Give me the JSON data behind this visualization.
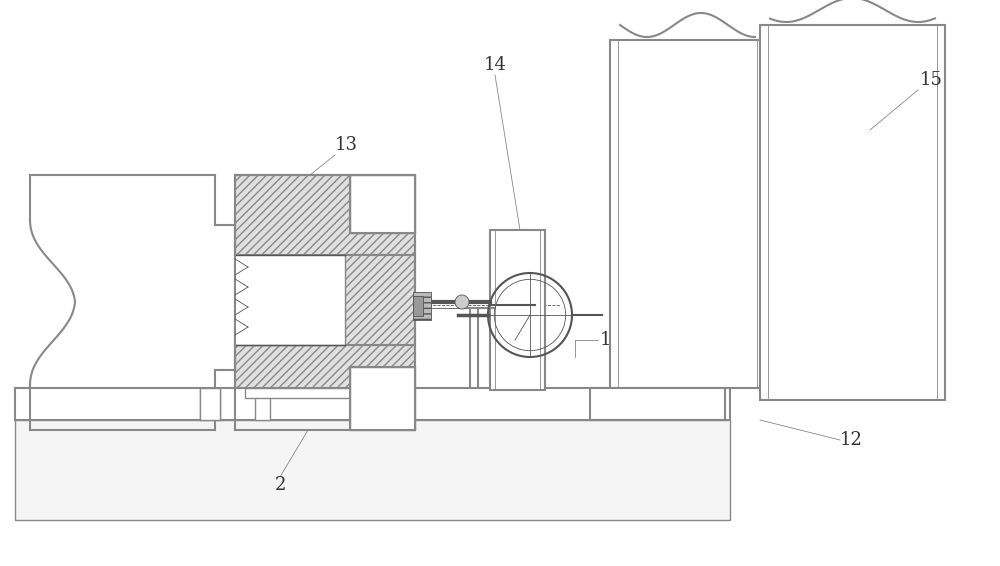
{
  "bg_color": "#ffffff",
  "lc": "#888888",
  "dc": "#555555",
  "label_color": "#333333",
  "figsize": [
    10.0,
    5.66
  ],
  "dpi": 100
}
